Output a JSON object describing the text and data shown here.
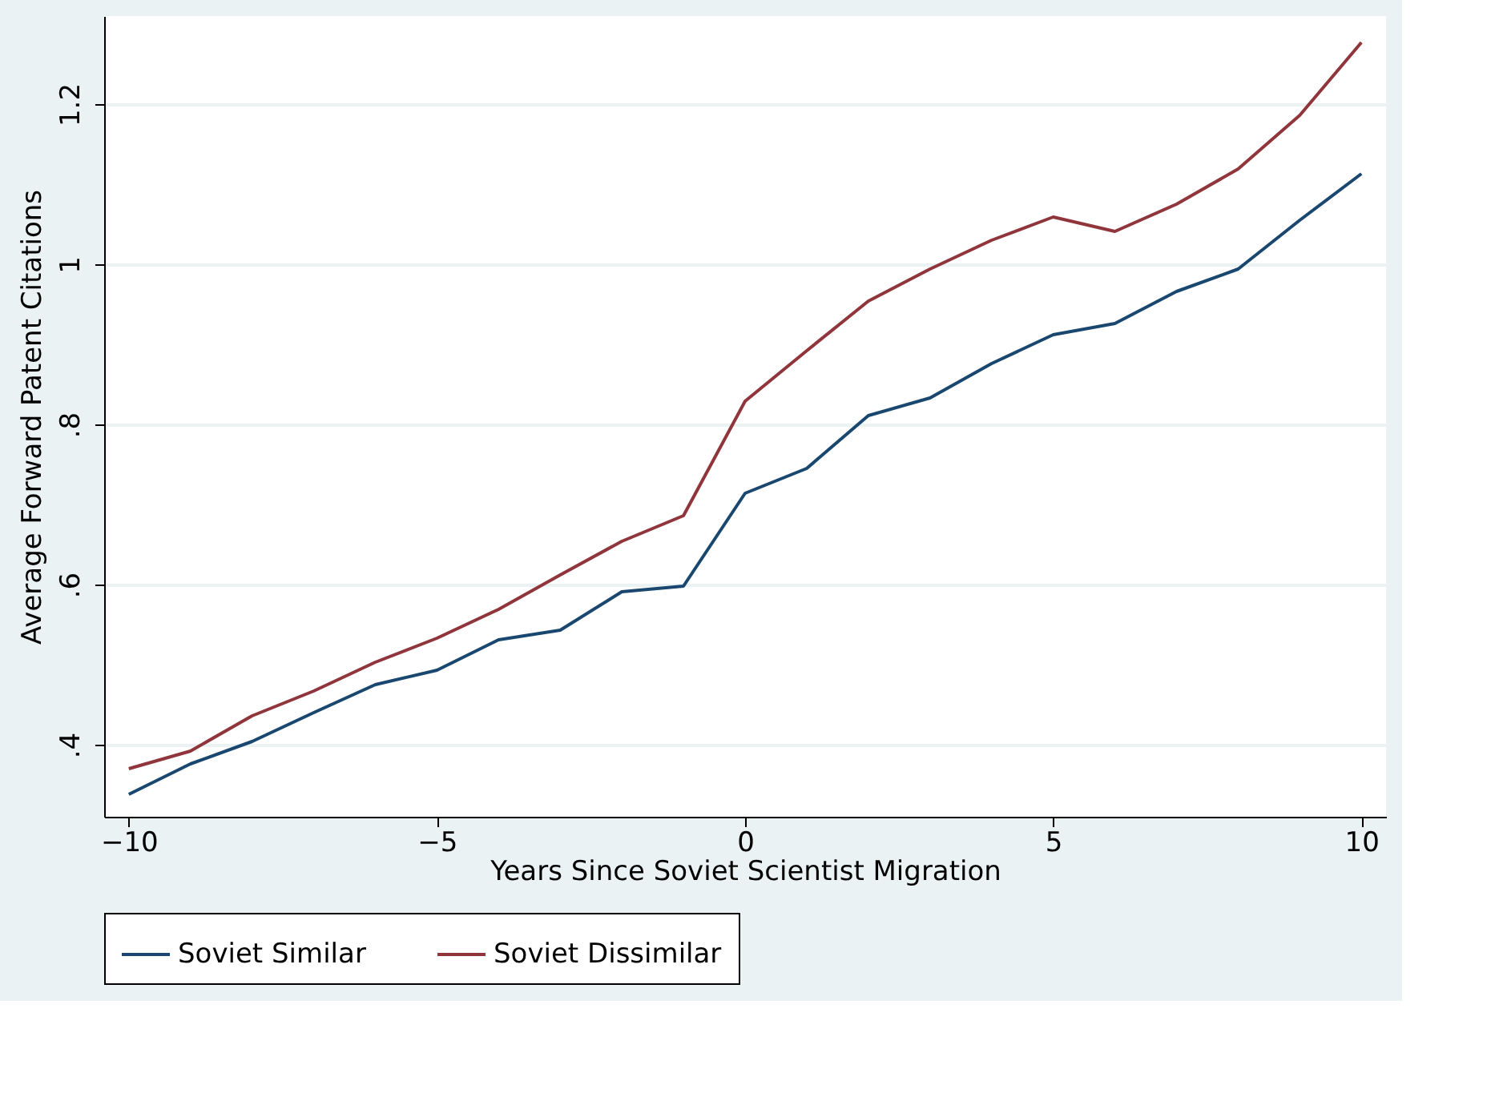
{
  "chart_data": {
    "type": "line",
    "xlabel": "Years Since Soviet Scientist Migration",
    "ylabel": "Average Forward Patent Citations",
    "x": [
      -10,
      -9,
      -8,
      -7,
      -6,
      -5,
      -4,
      -3,
      -2,
      -1,
      0,
      1,
      2,
      3,
      4,
      5,
      6,
      7,
      8,
      9,
      10
    ],
    "series": [
      {
        "name": "Soviet Similar",
        "color": "#1a476f",
        "values": [
          0.338,
          0.376,
          0.404,
          0.44,
          0.475,
          0.493,
          0.531,
          0.543,
          0.591,
          0.598,
          0.714,
          0.745,
          0.811,
          0.833,
          0.876,
          0.912,
          0.926,
          0.966,
          0.994,
          1.055,
          1.113
        ]
      },
      {
        "name": "Soviet Dissimilar",
        "color": "#90353b",
        "values": [
          0.37,
          0.392,
          0.436,
          0.467,
          0.503,
          0.533,
          0.569,
          0.612,
          0.654,
          0.686,
          0.829,
          0.892,
          0.954,
          0.994,
          1.03,
          1.059,
          1.041,
          1.075,
          1.119,
          1.186,
          1.277
        ]
      }
    ],
    "xlim": [
      -10.4,
      10.4
    ],
    "ylim": [
      0.31,
      1.31
    ],
    "xticks": [
      {
        "value": -10,
        "label": "−10"
      },
      {
        "value": -5,
        "label": "−5"
      },
      0,
      5,
      10
    ],
    "yticks": [
      {
        "value": 0.4,
        "label": ".4"
      },
      {
        "value": 0.6,
        "label": ".6"
      },
      {
        "value": 0.8,
        "label": ".8"
      },
      1,
      1.2
    ],
    "grid": "y",
    "legend": "bottom",
    "marker": "none",
    "line_style": "solid"
  }
}
